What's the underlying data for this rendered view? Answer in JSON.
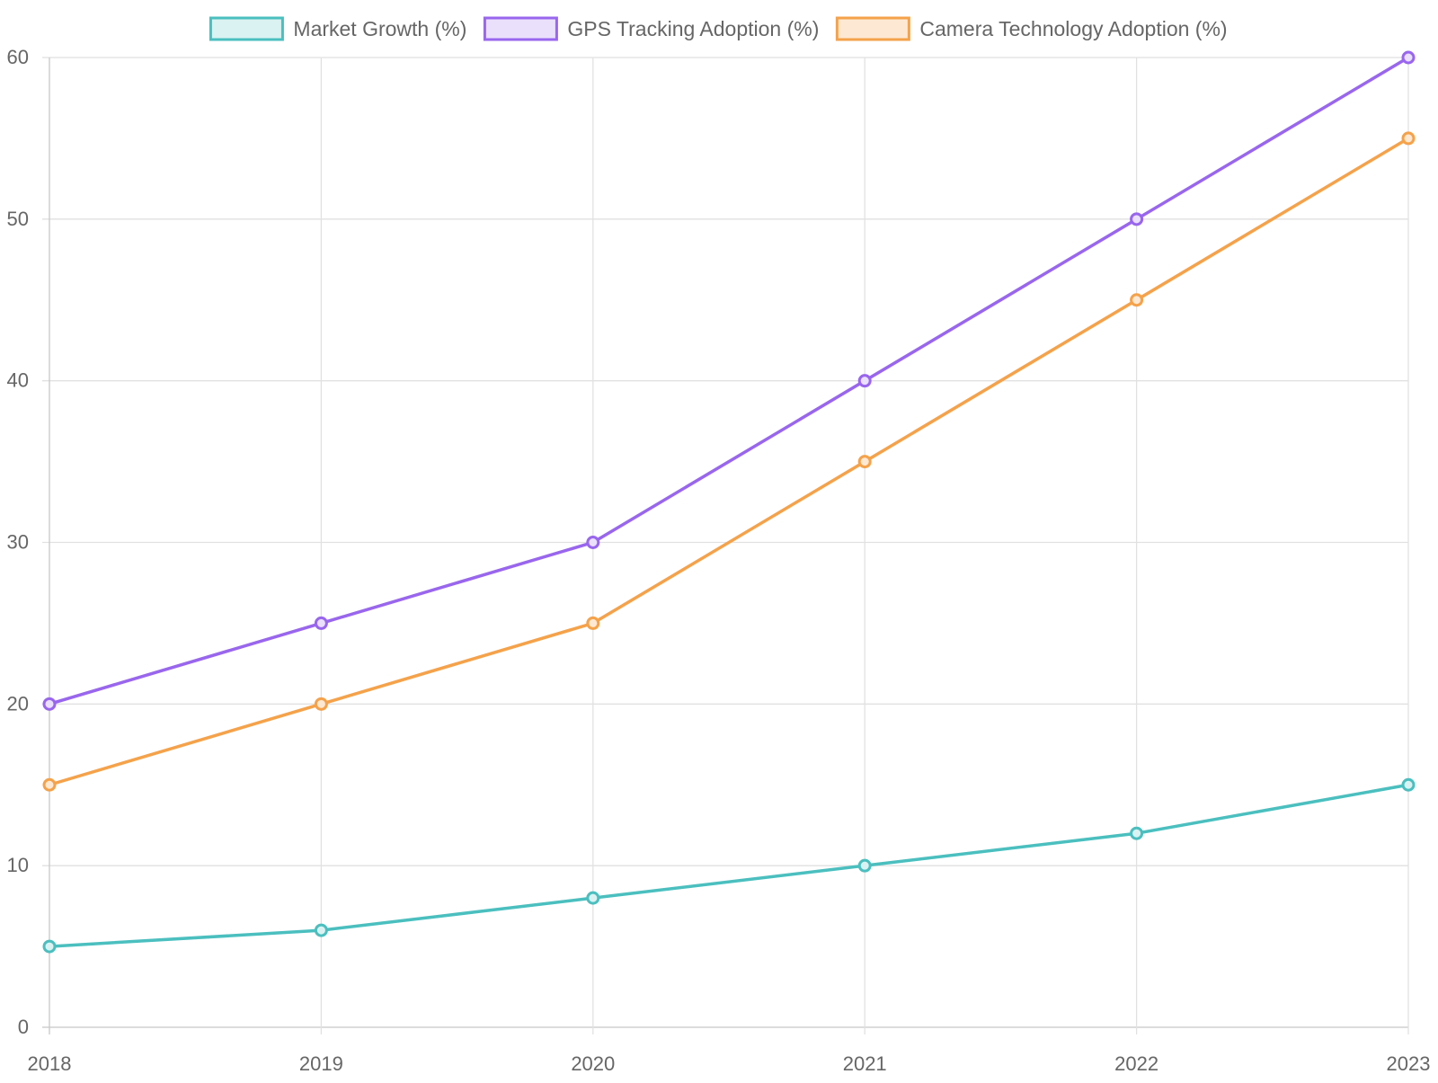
{
  "chart_data": {
    "type": "line",
    "title": "",
    "xlabel": "",
    "ylabel": "",
    "categories": [
      "2018",
      "2019",
      "2020",
      "2021",
      "2022",
      "2023"
    ],
    "ylim": [
      0,
      60
    ],
    "yticks": [
      0,
      10,
      20,
      30,
      40,
      50,
      60
    ],
    "grid": true,
    "legend_position": "top-center",
    "series": [
      {
        "name": "Market Growth (%)",
        "color": "#4bbfbf",
        "fill": "#dbf2f2",
        "values": [
          5,
          6,
          8,
          10,
          12,
          15
        ]
      },
      {
        "name": "GPS Tracking Adoption (%)",
        "color": "#9966ee",
        "fill": "#ebe0fb",
        "values": [
          20,
          25,
          30,
          40,
          50,
          60
        ]
      },
      {
        "name": "Camera Technology Adoption (%)",
        "color": "#f5a24a",
        "fill": "#fde8d3",
        "values": [
          15,
          20,
          25,
          35,
          45,
          55
        ]
      }
    ]
  }
}
